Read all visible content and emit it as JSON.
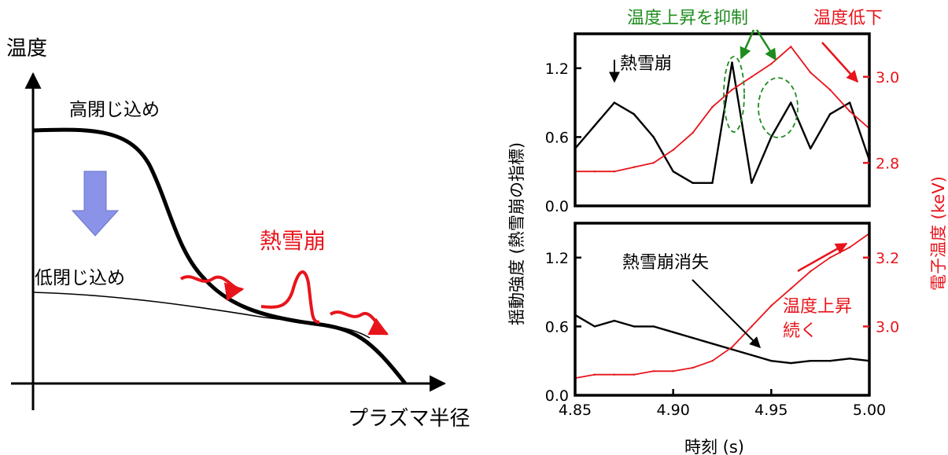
{
  "colors": {
    "red": "#e8141b",
    "green": "#1e8c1e",
    "blue_arrow": "#8a93e8",
    "black": "#000000"
  },
  "left_diagram": {
    "y_axis_label": "温度",
    "x_axis_label": "プラズマ半径",
    "high_label": "高閉じ込め",
    "low_label": "低閉じ込め",
    "avalanche_label": "熱雪崩",
    "transition_arrow_icon": "down-arrow-icon"
  },
  "chart_data": [
    {
      "type": "line",
      "panel": "top",
      "x": [
        4.85,
        4.86,
        4.87,
        4.88,
        4.89,
        4.9,
        4.91,
        4.92,
        4.93,
        4.94,
        4.95,
        4.96,
        4.97,
        4.98,
        4.99,
        5.0
      ],
      "series": [
        {
          "axis": "left",
          "color": "#000000",
          "values": [
            0.5,
            0.7,
            0.9,
            0.8,
            0.6,
            0.3,
            0.2,
            0.2,
            1.25,
            0.2,
            0.6,
            0.9,
            0.5,
            0.8,
            0.9,
            0.4
          ]
        },
        {
          "axis": "right",
          "color": "#e8141b",
          "values": [
            2.78,
            2.78,
            2.78,
            2.79,
            2.8,
            2.83,
            2.87,
            2.93,
            2.97,
            3.0,
            3.03,
            3.07,
            3.01,
            2.97,
            2.92,
            2.88
          ]
        }
      ],
      "ylim_left": [
        0.0,
        1.5
      ],
      "yticks_left": [
        "0.0",
        "0.6",
        "1.2"
      ],
      "ylim_right": [
        2.7,
        3.1
      ],
      "yticks_right": [
        "2.8",
        "3.0"
      ],
      "annotations": {
        "avalanche": "熱雪崩",
        "suppress": "温度上昇を抑制",
        "temp_drop": "温度低下"
      }
    },
    {
      "type": "line",
      "panel": "bottom",
      "x": [
        4.85,
        4.86,
        4.87,
        4.88,
        4.89,
        4.9,
        4.91,
        4.92,
        4.93,
        4.94,
        4.95,
        4.96,
        4.97,
        4.98,
        4.99,
        5.0
      ],
      "series": [
        {
          "axis": "left",
          "color": "#000000",
          "values": [
            0.7,
            0.6,
            0.65,
            0.6,
            0.6,
            0.55,
            0.5,
            0.45,
            0.4,
            0.35,
            0.3,
            0.28,
            0.3,
            0.3,
            0.32,
            0.3
          ]
        },
        {
          "axis": "right",
          "color": "#e8141b",
          "values": [
            2.85,
            2.86,
            2.86,
            2.86,
            2.87,
            2.87,
            2.88,
            2.9,
            2.94,
            3.0,
            3.06,
            3.11,
            3.16,
            3.2,
            3.23,
            3.27
          ]
        }
      ],
      "ylim_left": [
        0.0,
        1.5
      ],
      "yticks_left": [
        "0.0",
        "0.6",
        "1.2"
      ],
      "ylim_right": [
        2.8,
        3.3
      ],
      "yticks_right": [
        "3.0",
        "3.2"
      ],
      "xticks": [
        "4.85",
        "4.90",
        "4.95",
        "5.00"
      ],
      "annotations": {
        "vanish": "熱雪崩消失",
        "rise_line1": "温度上昇",
        "rise_line2": "続く"
      }
    }
  ],
  "axes_text": {
    "xlabel": "時刻 (s)",
    "ylabel_left": "揺動強度 (熱雪崩の指標)",
    "ylabel_right": "電子温度 (keV)"
  }
}
